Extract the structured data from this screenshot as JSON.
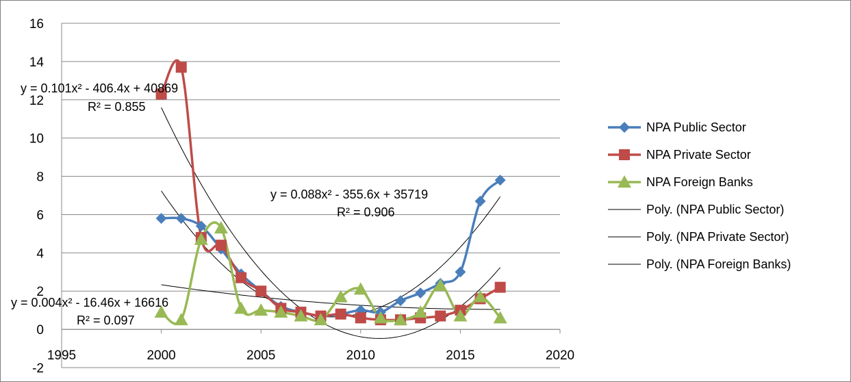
{
  "chart_data": {
    "type": "line",
    "title": "",
    "xlabel": "",
    "ylabel": "",
    "xlim": [
      1995,
      2020
    ],
    "ylim": [
      -2,
      16
    ],
    "x_ticks": [
      "1995",
      "2000",
      "2005",
      "2010",
      "2015",
      "2020"
    ],
    "y_ticks": [
      "-2",
      "0",
      "2",
      "4",
      "6",
      "8",
      "10",
      "12",
      "14",
      "16"
    ],
    "grid": "horizontal",
    "legend_position": "right",
    "x": [
      2000,
      2001,
      2002,
      2003,
      2004,
      2005,
      2006,
      2007,
      2008,
      2009,
      2010,
      2011,
      2012,
      2013,
      2014,
      2015,
      2016,
      2017
    ],
    "series": [
      {
        "name": "NPA Public Sector",
        "color": "#4a7ebb",
        "marker": "diamond",
        "values": [
          5.8,
          5.8,
          5.4,
          4.2,
          2.9,
          2.0,
          1.2,
          0.9,
          0.7,
          0.8,
          1.0,
          0.9,
          1.5,
          1.9,
          2.4,
          3.0,
          6.7,
          7.8
        ]
      },
      {
        "name": "NPA Private Sector",
        "color": "#be4b48",
        "marker": "square",
        "values": [
          12.3,
          13.7,
          4.8,
          4.4,
          2.7,
          2.0,
          1.1,
          0.9,
          0.7,
          0.8,
          0.6,
          0.5,
          0.5,
          0.6,
          0.7,
          1.0,
          1.6,
          2.2
        ]
      },
      {
        "name": "NPA Foreign Banks",
        "color": "#98b954",
        "marker": "triangle",
        "values": [
          0.9,
          0.5,
          4.7,
          5.3,
          1.1,
          1.0,
          0.9,
          0.7,
          0.5,
          1.7,
          2.1,
          0.6,
          0.5,
          0.9,
          2.3,
          0.7,
          1.7,
          0.6
        ]
      }
    ],
    "trendlines": [
      {
        "name": "Poly. (NPA Public Sector)",
        "color": "#000000",
        "coeffs": [
          0.088,
          -355.6,
          35719
        ],
        "label": "y = 0.088x² - 355.6x + 35719",
        "r2": "R² = 0.906"
      },
      {
        "name": "Poly. (NPA Private Sector)",
        "color": "#000000",
        "coeffs": [
          0.101,
          -406.4,
          40869
        ],
        "label": "y = 0.101x² - 406.4x + 40869",
        "r2": "R² = 0.855"
      },
      {
        "name": "Poly. (NPA Foreign Banks)",
        "color": "#000000",
        "coeffs": [
          0.004,
          -16.46,
          16616
        ],
        "label": "y = 0.004x² - 16.46x + 16616",
        "r2": "R² = 0.097"
      }
    ]
  }
}
